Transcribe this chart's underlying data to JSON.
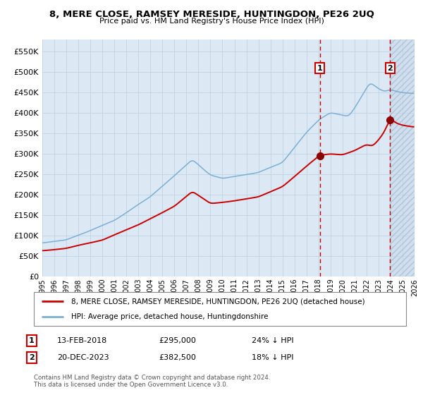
{
  "title": "8, MERE CLOSE, RAMSEY MERESIDE, HUNTINGDON, PE26 2UQ",
  "subtitle": "Price paid vs. HM Land Registry's House Price Index (HPI)",
  "legend_line1": "8, MERE CLOSE, RAMSEY MERESIDE, HUNTINGDON, PE26 2UQ (detached house)",
  "legend_line2": "HPI: Average price, detached house, Huntingdonshire",
  "annotation1_label": "1",
  "annotation1_date": "13-FEB-2018",
  "annotation1_price": "£295,000",
  "annotation1_hpi": "24% ↓ HPI",
  "annotation2_label": "2",
  "annotation2_date": "20-DEC-2023",
  "annotation2_price": "£382,500",
  "annotation2_hpi": "18% ↓ HPI",
  "footer": "Contains HM Land Registry data © Crown copyright and database right 2024.\nThis data is licensed under the Open Government Licence v3.0.",
  "hpi_color": "#7bafd4",
  "price_color": "#cc0000",
  "marker_color": "#8b0000",
  "vline_color": "#cc0000",
  "bg_color": "#dce9f5",
  "grid_color": "#b8cfe0",
  "annotation_box_color": "#cc0000",
  "sale1_year": 2018.12,
  "sale1_price": 295000,
  "sale2_year": 2023.96,
  "sale2_price": 382500,
  "ylim_max": 580000,
  "xlim_min": 1995,
  "xlim_max": 2026
}
